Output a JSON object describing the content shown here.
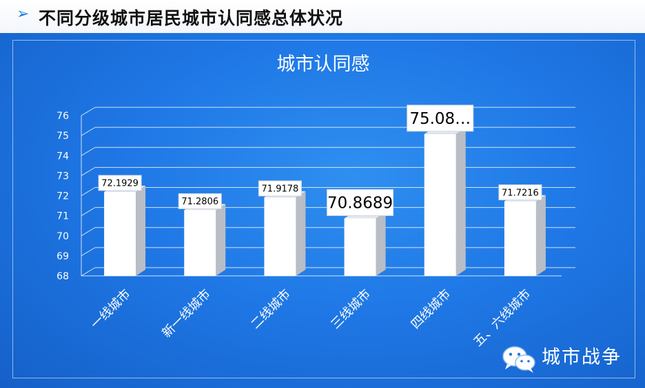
{
  "header": {
    "title": "不同分级城市居民城市认同感总体状况"
  },
  "chart_data": {
    "type": "bar",
    "title": "城市认同感",
    "categories": [
      "一线城市",
      "新一线城市",
      "二线城市",
      "三线城市",
      "四线城市",
      "五、六线城市"
    ],
    "values": [
      72.1929,
      71.2806,
      71.9178,
      70.8689,
      75.08,
      71.7216
    ],
    "data_labels": [
      "72.1929",
      "71.2806",
      "71.9178",
      "70.8689",
      "75.08…",
      "71.7216"
    ],
    "ylim": [
      68,
      76
    ],
    "yticks": [
      68,
      69,
      70,
      71,
      72,
      73,
      74,
      75,
      76
    ],
    "grid": true,
    "style": "3d",
    "colors": {
      "bar": "#ffffff",
      "bar_side": "#b8bdc6",
      "background": "#1f78e6"
    }
  },
  "watermark": {
    "text": "城市战争",
    "icon": "wechat-icon"
  }
}
